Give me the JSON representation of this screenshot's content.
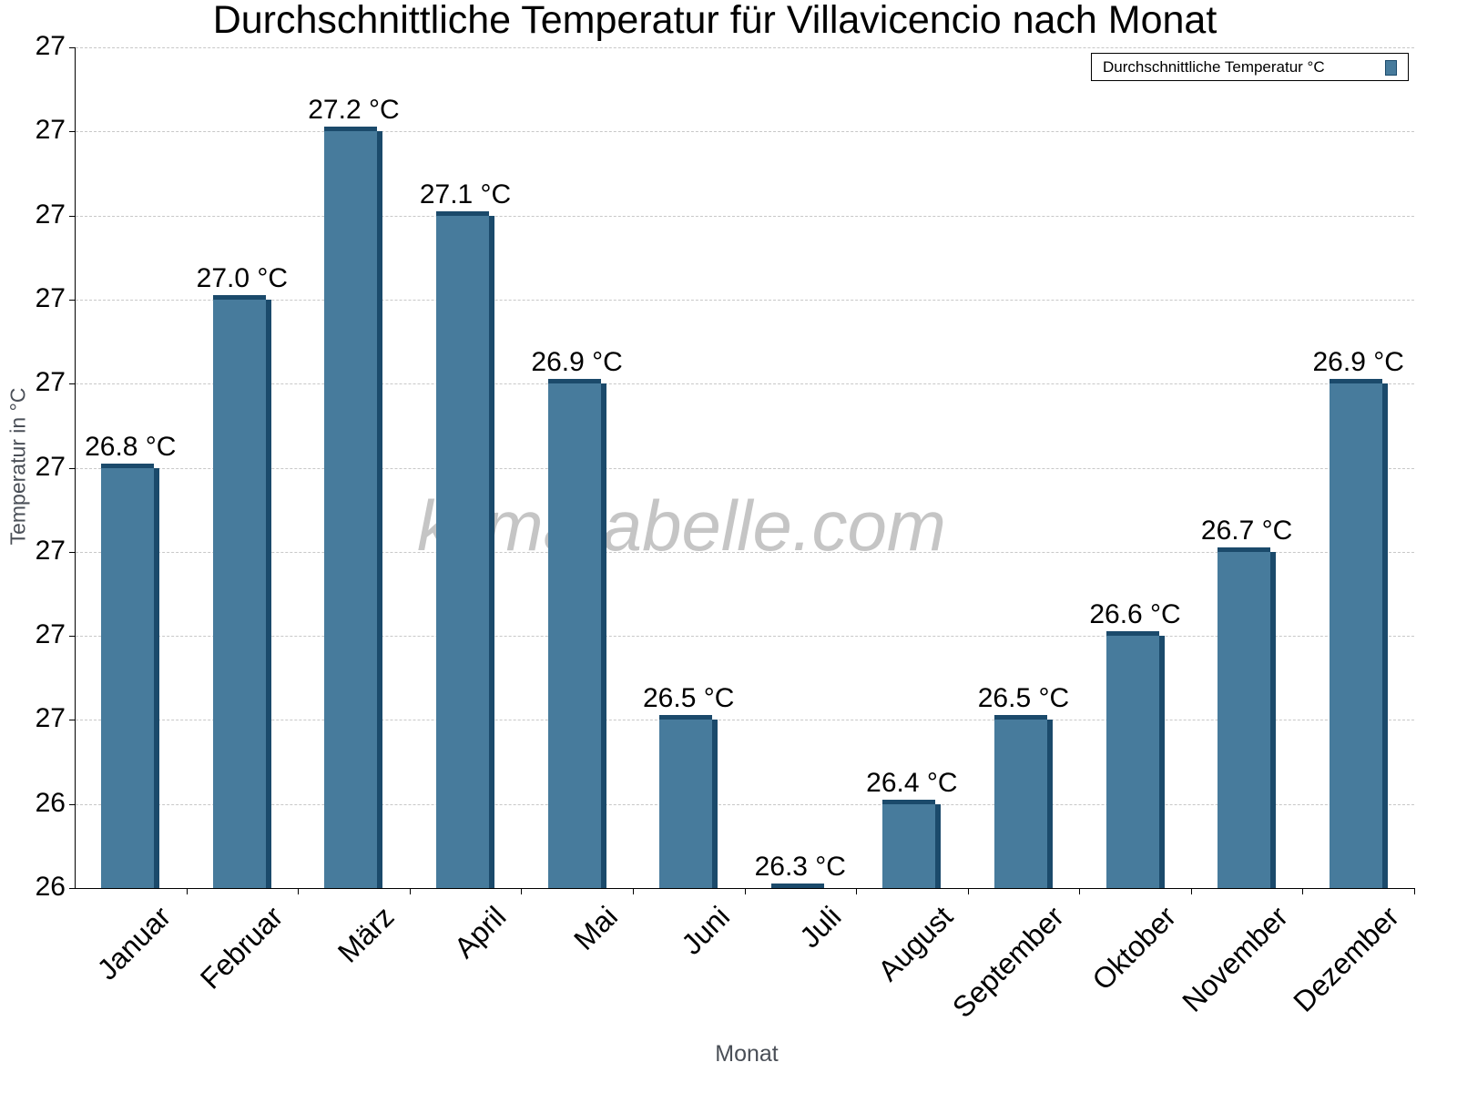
{
  "chart_data": {
    "type": "bar",
    "title": "Durchschnittliche Temperatur für Villavicencio nach Monat",
    "xlabel": "Monat",
    "ylabel": "Temperatur in °C",
    "categories": [
      "Januar",
      "Februar",
      "März",
      "April",
      "Mai",
      "Juni",
      "Juli",
      "August",
      "September",
      "Oktober",
      "November",
      "Dezember"
    ],
    "series": [
      {
        "name": "Durchschnittliche Temperatur °C",
        "color": "#477b9c",
        "values": [
          26.8,
          27.0,
          27.2,
          27.1,
          26.9,
          26.5,
          26.3,
          26.4,
          26.5,
          26.6,
          26.7,
          26.9
        ],
        "labels": [
          "26.8 °C",
          "27.0 °C",
          "27.2 °C",
          "27.1 °C",
          "26.9 °C",
          "26.5 °C",
          "26.3 °C",
          "26.4 °C",
          "26.5 °C",
          "26.6 °C",
          "26.7 °C",
          "26.9 °C"
        ]
      }
    ],
    "ylim": [
      26.3,
      27.3
    ],
    "y_tick_labels": [
      "27",
      "27",
      "27",
      "27",
      "27",
      "27",
      "27",
      "27",
      "27",
      "26",
      "26"
    ],
    "grid": true,
    "legend_position": "top-right",
    "watermark": "klimatabelle.com"
  }
}
